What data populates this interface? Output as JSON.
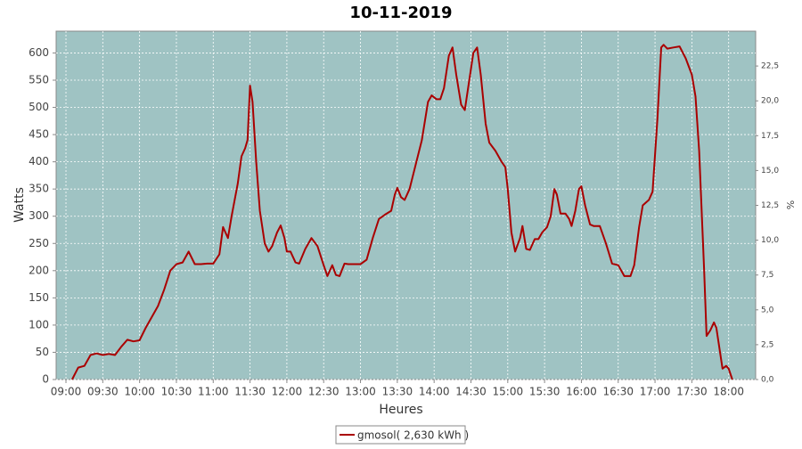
{
  "chart_data": {
    "type": "line",
    "title": "10-11-2019",
    "xlabel": "Heures",
    "ylabel": "Watts",
    "y2label": "%",
    "x": [
      "09:05",
      "09:10",
      "09:15",
      "09:20",
      "09:25",
      "09:30",
      "09:35",
      "09:40",
      "09:45",
      "09:50",
      "09:55",
      "10:00",
      "10:05",
      "10:10",
      "10:15",
      "10:20",
      "10:25",
      "10:30",
      "10:35",
      "10:40",
      "10:45",
      "10:50",
      "10:55",
      "11:00",
      "11:05",
      "11:08",
      "11:12",
      "11:15",
      "11:20",
      "11:23",
      "11:26",
      "11:28",
      "11:30",
      "11:32",
      "11:35",
      "11:38",
      "11:42",
      "11:45",
      "11:48",
      "11:52",
      "11:55",
      "11:58",
      "12:00",
      "12:03",
      "12:07",
      "12:10",
      "12:15",
      "12:20",
      "12:25",
      "12:30",
      "12:33",
      "12:37",
      "12:40",
      "12:43",
      "12:47",
      "12:50",
      "13:00",
      "13:05",
      "13:10",
      "13:15",
      "13:20",
      "13:25",
      "13:28",
      "13:30",
      "13:33",
      "13:36",
      "13:40",
      "13:45",
      "13:50",
      "13:55",
      "13:58",
      "14:02",
      "14:05",
      "14:08",
      "14:12",
      "14:15",
      "14:18",
      "14:22",
      "14:25",
      "14:28",
      "14:32",
      "14:35",
      "14:38",
      "14:42",
      "14:45",
      "14:50",
      "14:55",
      "14:58",
      "15:00",
      "15:03",
      "15:06",
      "15:10",
      "15:12",
      "15:15",
      "15:18",
      "15:22",
      "15:25",
      "15:28",
      "15:32",
      "15:35",
      "15:38",
      "15:40",
      "15:43",
      "15:47",
      "15:50",
      "15:52",
      "15:55",
      "15:58",
      "16:00",
      "16:03",
      "16:07",
      "16:10",
      "16:15",
      "16:20",
      "16:25",
      "16:30",
      "16:35",
      "16:40",
      "16:43",
      "16:47",
      "16:50",
      "16:55",
      "16:58",
      "17:02",
      "17:05",
      "17:07",
      "17:10",
      "17:15",
      "17:20",
      "17:25",
      "17:30",
      "17:33",
      "17:36",
      "17:40",
      "17:42",
      "17:45",
      "17:48",
      "17:50",
      "17:55",
      "17:58",
      "18:00",
      "18:03"
    ],
    "series": [
      {
        "name": "gmosol( 2,630 kWh )",
        "color": "#aa0000",
        "values": [
          0,
          22,
          25,
          45,
          48,
          45,
          47,
          45,
          60,
          73,
          70,
          72,
          95,
          115,
          135,
          165,
          200,
          212,
          215,
          235,
          212,
          212,
          213,
          213,
          230,
          280,
          260,
          300,
          360,
          410,
          425,
          440,
          540,
          510,
          400,
          310,
          250,
          235,
          245,
          270,
          283,
          260,
          235,
          235,
          215,
          213,
          240,
          260,
          245,
          210,
          190,
          210,
          192,
          190,
          213,
          212,
          212,
          220,
          260,
          295,
          303,
          310,
          340,
          352,
          335,
          330,
          350,
          395,
          440,
          510,
          522,
          515,
          515,
          535,
          595,
          610,
          560,
          505,
          495,
          540,
          600,
          610,
          560,
          470,
          435,
          420,
          400,
          390,
          350,
          270,
          235,
          260,
          282,
          240,
          238,
          258,
          258,
          270,
          280,
          300,
          350,
          340,
          305,
          305,
          295,
          282,
          310,
          350,
          355,
          320,
          285,
          282,
          282,
          250,
          213,
          210,
          190,
          190,
          210,
          280,
          320,
          330,
          345,
          480,
          610,
          615,
          608,
          610,
          612,
          590,
          560,
          520,
          420,
          200,
          80,
          90,
          105,
          95,
          20,
          25,
          20,
          0
        ]
      }
    ],
    "xlim": [
      "08:52",
      "18:22"
    ],
    "xticks": [
      "09:00",
      "09:30",
      "10:00",
      "10:30",
      "11:00",
      "11:30",
      "12:00",
      "12:30",
      "13:00",
      "13:30",
      "14:00",
      "14:30",
      "15:00",
      "15:30",
      "16:00",
      "16:30",
      "17:00",
      "17:30",
      "18:00"
    ],
    "ylim": [
      0,
      640
    ],
    "yticks": [
      0,
      50,
      100,
      150,
      200,
      250,
      300,
      350,
      400,
      450,
      500,
      550,
      600
    ],
    "y2lim": [
      0,
      25
    ],
    "y2ticks": [
      {
        "value": 0,
        "label": "0,0"
      },
      {
        "value": 2.5,
        "label": "2,5"
      },
      {
        "value": 5,
        "label": "5,0"
      },
      {
        "value": 7.5,
        "label": "7,5"
      },
      {
        "value": 10,
        "label": "10,0"
      },
      {
        "value": 12.5,
        "label": "12,5"
      },
      {
        "value": 15,
        "label": "15,0"
      },
      {
        "value": 17.5,
        "label": "17,5"
      },
      {
        "value": 20,
        "label": "20,0"
      },
      {
        "value": 22.5,
        "label": "22,5"
      }
    ],
    "grid": true,
    "plot_color": "#9fc3c3",
    "legend": "bottom"
  }
}
